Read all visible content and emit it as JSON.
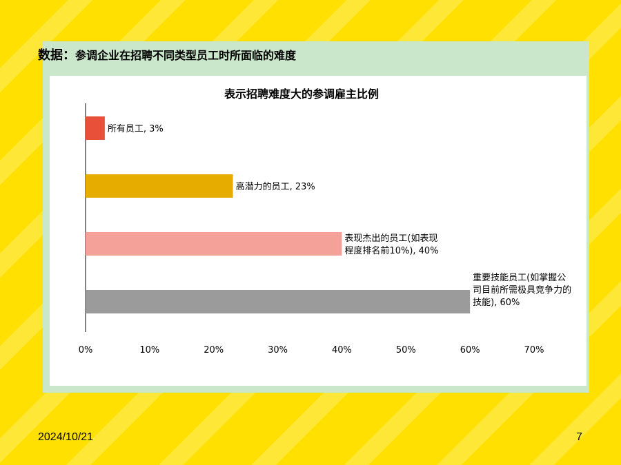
{
  "slide": {
    "heading_prefix": "数据：",
    "heading_text": "参调企业在招聘不同类型员工时所面临的难度",
    "date": "2024/10/21",
    "page_number": "7"
  },
  "colors": {
    "background": "#FFE000",
    "panel": "#CBE7CB",
    "bar_1": "#E8503A",
    "bar_2": "#E6AC00",
    "bar_3": "#F4A199",
    "bar_4": "#9B9B9B"
  },
  "chart_data": {
    "type": "bar",
    "orientation": "horizontal",
    "title": "表示招聘难度大的参调雇主比例",
    "categories": [
      "所有员工",
      "高潜力的员工",
      "表现杰出的员工(如表现程度排名前10%)",
      "重要技能员工(如掌握公司目前所需极具竞争力的技能)"
    ],
    "values": [
      3,
      23,
      40,
      60
    ],
    "unit": "%",
    "data_labels": [
      [
        "所有员工, 3%"
      ],
      [
        "高潜力的员工, 23%"
      ],
      [
        "表现杰出的员工(如表现",
        "程度排名前10%), 40%"
      ],
      [
        "重要技能员工(如掌握公",
        "司目前所需极具竞争力的",
        "技能), 60%"
      ]
    ],
    "xlim": [
      0,
      70
    ],
    "x_ticks": [
      "0%",
      "10%",
      "20%",
      "30%",
      "40%",
      "50%",
      "60%",
      "70%"
    ],
    "grid": false,
    "legend": "none"
  }
}
